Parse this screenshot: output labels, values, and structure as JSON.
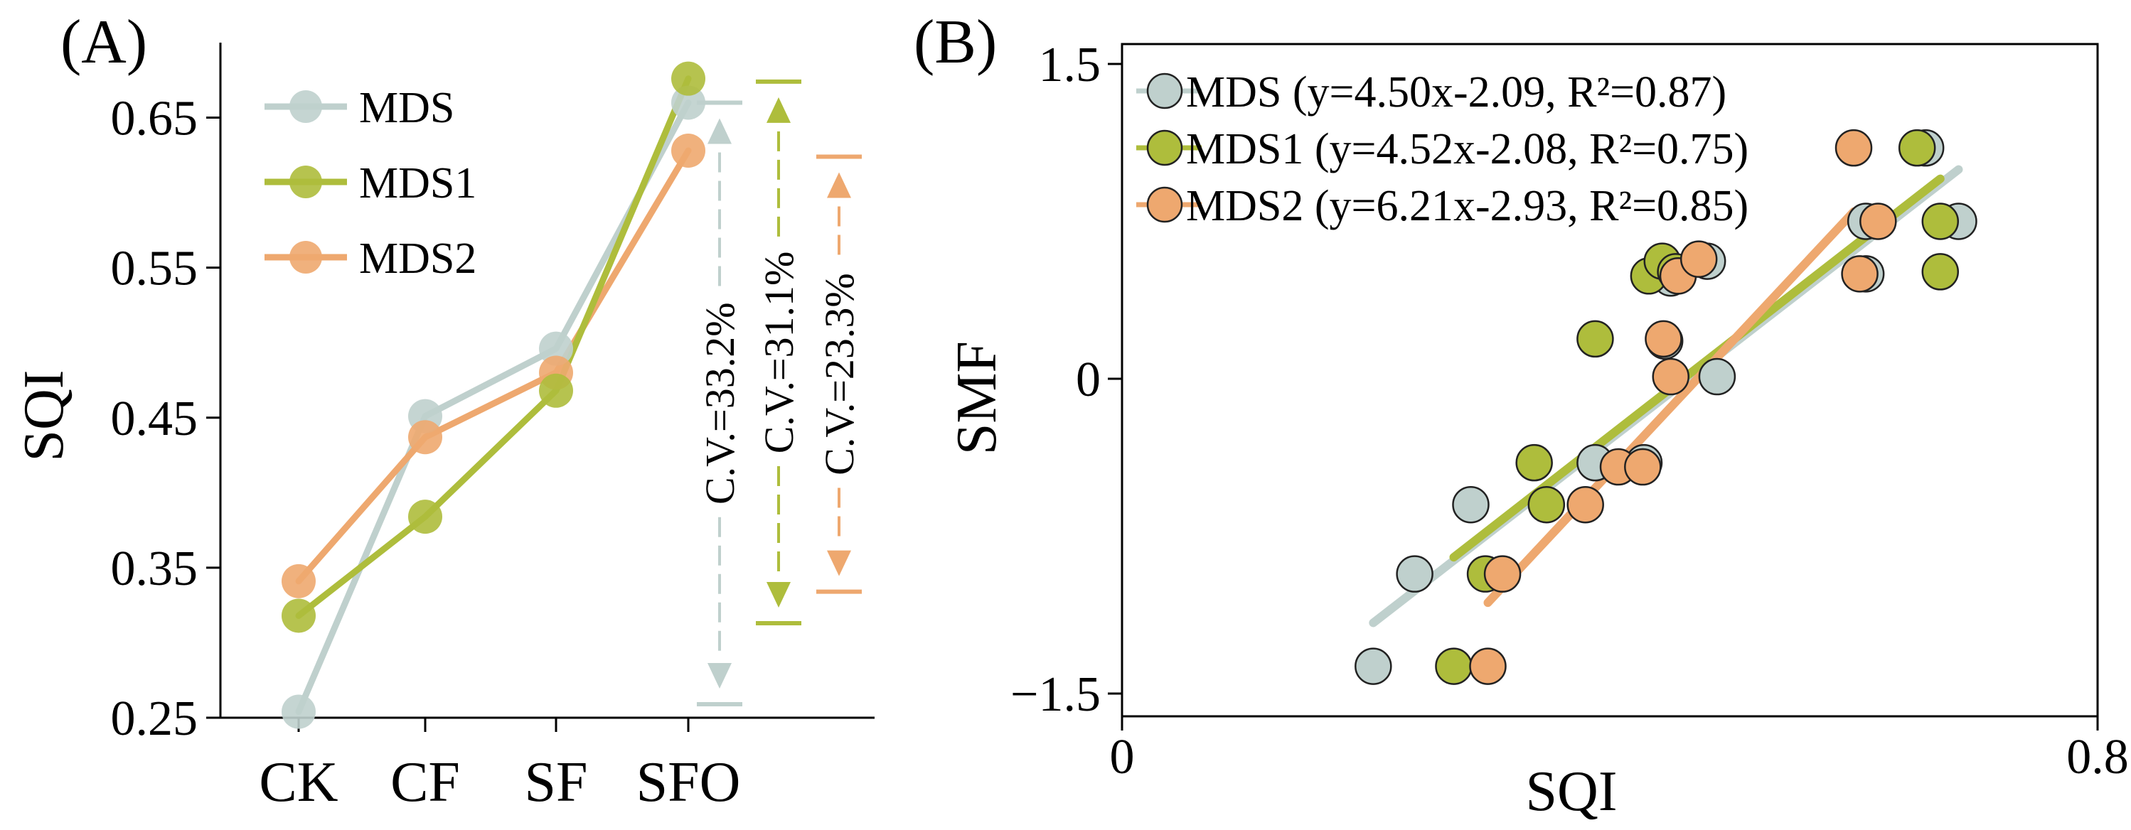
{
  "colors": {
    "MDS": "#bfd0cd",
    "MDS1": "#aebd3c",
    "MDS2": "#eea86f",
    "axis": "#000000"
  },
  "chart_data": [
    {
      "panel": "(A)",
      "type": "line",
      "title": "",
      "xlabel": "",
      "ylabel": "SQI",
      "categories": [
        "CK",
        "CF",
        "SF",
        "SFO"
      ],
      "ylim": [
        0.25,
        0.7
      ],
      "yticks": [
        "0.25",
        "0.35",
        "0.45",
        "0.55",
        "0.65"
      ],
      "series": [
        {
          "name": "MDS",
          "values": [
            0.254,
            0.451,
            0.496,
            0.66
          ]
        },
        {
          "name": "MDS1",
          "values": [
            0.318,
            0.384,
            0.468,
            0.676
          ]
        },
        {
          "name": "MDS2",
          "values": [
            0.341,
            0.437,
            0.48,
            0.628
          ]
        }
      ],
      "legend": [
        "MDS",
        "MDS1",
        "MDS2"
      ],
      "legend_position": "top-left",
      "cv_annotations": [
        {
          "series": "MDS",
          "label": "C.V.=33.2%",
          "range": [
            0.259,
            0.66
          ]
        },
        {
          "series": "MDS1",
          "label": "C.V.=31.1%",
          "range": [
            0.313,
            0.674
          ]
        },
        {
          "series": "MDS2",
          "label": "C.V.=23.3%",
          "range": [
            0.334,
            0.624
          ]
        }
      ]
    },
    {
      "panel": "(B)",
      "type": "scatter",
      "title": "",
      "xlabel": "SQI",
      "ylabel": "SMF",
      "xlim": [
        0,
        0.8
      ],
      "ylim": [
        -1.5,
        1.5
      ],
      "xticks": [
        "0",
        "0.8"
      ],
      "yticks": [
        "−1.5",
        "0",
        "1.5"
      ],
      "legend_position": "top-left",
      "series": [
        {
          "name": "MDS",
          "legend_label": "MDS (y=4.50x-2.09, R²=0.87)",
          "fit": {
            "slope": 4.5,
            "intercept": -2.09,
            "x_range": [
              0.206,
              0.686
            ]
          },
          "points": [
            [
              0.206,
              -1.37
            ],
            [
              0.24,
              -0.93
            ],
            [
              0.286,
              -0.6
            ],
            [
              0.388,
              -0.4
            ],
            [
              0.445,
              0.18
            ],
            [
              0.45,
              0.48
            ],
            [
              0.48,
              0.56
            ],
            [
              0.488,
              0.01
            ],
            [
              0.428,
              -0.4
            ],
            [
              0.61,
              0.75
            ],
            [
              0.659,
              1.1
            ],
            [
              0.686,
              0.75
            ],
            [
              0.61,
              0.5
            ]
          ]
        },
        {
          "name": "MDS1",
          "legend_label": "MDS1 (y=4.52x-2.08, R²=0.75)",
          "fit": {
            "slope": 4.52,
            "intercept": -2.08,
            "x_range": [
              0.272,
              0.671
            ]
          },
          "points": [
            [
              0.272,
              -1.37
            ],
            [
              0.298,
              -0.93
            ],
            [
              0.338,
              -0.4
            ],
            [
              0.348,
              -0.6
            ],
            [
              0.388,
              0.19
            ],
            [
              0.432,
              0.49
            ],
            [
              0.443,
              0.56
            ],
            [
              0.454,
              0.51
            ],
            [
              0.652,
              1.1
            ],
            [
              0.671,
              0.75
            ],
            [
              0.671,
              0.51
            ]
          ]
        },
        {
          "name": "MDS2",
          "legend_label": "MDS2 (y=6.21x-2.93, R²=0.85)",
          "fit": {
            "slope": 6.21,
            "intercept": -2.93,
            "x_range": [
              0.3,
              0.6
            ]
          },
          "points": [
            [
              0.3,
              -1.37
            ],
            [
              0.312,
              -0.93
            ],
            [
              0.38,
              -0.6
            ],
            [
              0.407,
              -0.42
            ],
            [
              0.427,
              -0.42
            ],
            [
              0.444,
              0.19
            ],
            [
              0.45,
              0.01
            ],
            [
              0.456,
              0.49
            ],
            [
              0.473,
              0.57
            ],
            [
              0.6,
              1.1
            ],
            [
              0.605,
              0.5
            ],
            [
              0.62,
              0.75
            ]
          ]
        }
      ]
    }
  ]
}
